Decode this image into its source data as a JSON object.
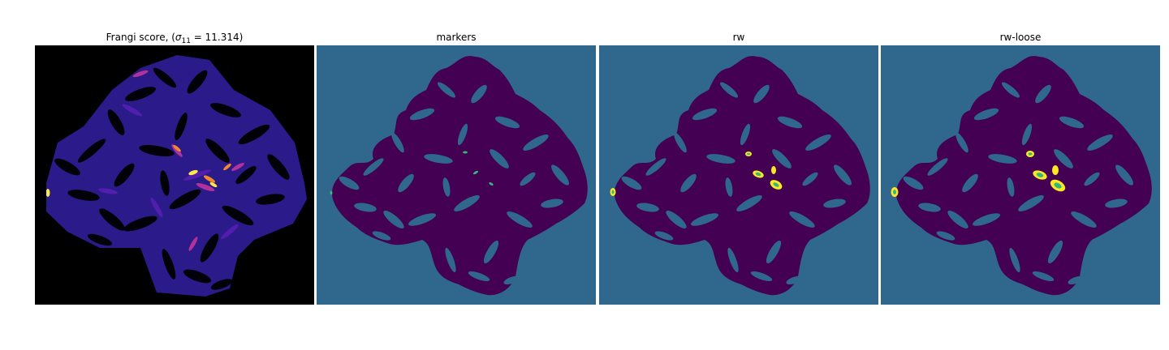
{
  "figure": {
    "panels": [
      {
        "key": "frangi",
        "title_prefix": "Frangi score, (",
        "title_sigma": "σ",
        "title_sub": "11",
        "title_suffix": " = 11.314)",
        "colormap": "inferno-like",
        "background": "#000000"
      },
      {
        "key": "markers",
        "title": "markers",
        "colormap": "viridis-like",
        "background": "#30678d"
      },
      {
        "key": "rw",
        "title": "rw",
        "colormap": "viridis-like",
        "background": "#30678d"
      },
      {
        "key": "rw-loose",
        "title": "rw-loose",
        "colormap": "viridis-like",
        "background": "#30678d"
      }
    ],
    "colors": {
      "dark_purple": "#440154",
      "teal_blue": "#30678d",
      "green": "#35b779",
      "yellow": "#fde725",
      "inferno_indigo": "#2a1a8a",
      "inferno_violet": "#5a1fb4",
      "inferno_magenta": "#b0329a",
      "inferno_orange": "#f08a2a",
      "inferno_yellow": "#fbe84a"
    }
  }
}
